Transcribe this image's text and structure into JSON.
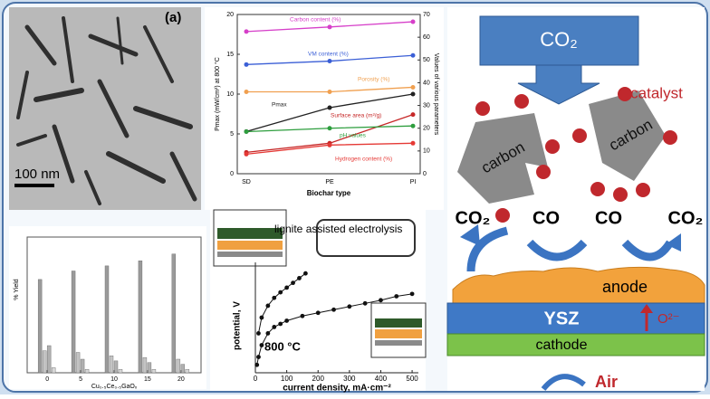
{
  "image": {
    "label": "(a)",
    "scale_bar": "100 nm"
  },
  "chart_data": [
    {
      "type": "line",
      "xlabel": "Biochar type",
      "ylabel": "Pmax (mW/cm²) at 800 °C",
      "y2label": "Values of various parameters",
      "categories": [
        "SD",
        "PE",
        "PI"
      ],
      "ylim": [
        0,
        20
      ],
      "yticks": [
        0,
        5,
        10,
        15,
        20
      ],
      "y2lim": [
        0,
        70
      ],
      "y2ticks": [
        0,
        10,
        20,
        30,
        40,
        50,
        60,
        70
      ],
      "series": [
        {
          "name": "Carbon content (%)",
          "color": "#d63fc9",
          "axis": "y2",
          "values": [
            62.5,
            64.5,
            66.8
          ]
        },
        {
          "name": "VM content (%)",
          "color": "#3b5fd6",
          "axis": "y2",
          "values": [
            48,
            49.5,
            52
          ]
        },
        {
          "name": "Porosity (%)",
          "color": "#f0a050",
          "axis": "y2",
          "values": [
            36,
            36,
            38
          ]
        },
        {
          "name": "Pmax",
          "color": "#222222",
          "values": [
            5.3,
            8.3,
            10
          ]
        },
        {
          "name": "Surface area (m²/g)",
          "color": "#c62828",
          "axis": "y2",
          "values": [
            9.4,
            13.4,
            26
          ]
        },
        {
          "name": "pH values",
          "color": "#2e9e3e",
          "axis": "y2",
          "values": [
            18.5,
            20,
            21
          ]
        },
        {
          "name": "Hydrogen content (%)",
          "color": "#e53935",
          "axis": "y2",
          "values": [
            8.6,
            12.6,
            13.4
          ]
        }
      ]
    },
    {
      "type": "bar",
      "xlabel": "Cu₀.₅Ce₀.₅GaOₓ",
      "ylabel": "% Yield",
      "x": [
        0,
        5,
        10,
        15,
        20
      ],
      "xlim": [
        -3,
        23
      ],
      "xticks": [
        0,
        5,
        10,
        15,
        20
      ],
      "ylim": [
        0,
        80
      ],
      "series": [
        {
          "color": "#9a9a9a",
          "values": [
            55,
            60,
            63,
            66,
            70
          ]
        },
        {
          "color": "#c4c4c4",
          "values": [
            13,
            12,
            10,
            9,
            8
          ]
        },
        {
          "color": "#b0b0b0",
          "values": [
            16,
            8,
            7,
            6,
            5
          ]
        },
        {
          "color": "#d8d8d8",
          "values": [
            3,
            2,
            2,
            2,
            2
          ]
        }
      ]
    },
    {
      "type": "scatter",
      "xlabel": "current density, mA·cm⁻²",
      "ylabel": "potential, V",
      "xlim": [
        0,
        520
      ],
      "xticks": [
        0,
        100,
        200,
        300,
        400,
        500
      ],
      "ylim": [
        0,
        1.4
      ],
      "annotations": [
        "800 °C",
        "lignite assisted electrolysis"
      ],
      "series": [
        {
          "color": "#111111",
          "x": [
            10,
            20,
            40,
            60,
            80,
            100,
            120,
            140,
            160
          ],
          "values": [
            0.5,
            0.7,
            0.85,
            0.95,
            1.02,
            1.08,
            1.14,
            1.2,
            1.26
          ]
        },
        {
          "color": "#111111",
          "x": [
            5,
            10,
            20,
            40,
            60,
            80,
            100,
            150,
            200,
            250,
            300,
            350,
            400,
            450,
            500
          ],
          "values": [
            0.1,
            0.2,
            0.35,
            0.5,
            0.58,
            0.62,
            0.66,
            0.72,
            0.76,
            0.8,
            0.84,
            0.88,
            0.92,
            0.97,
            1.0
          ]
        }
      ]
    }
  ],
  "diagram": {
    "inlet": "CO₂",
    "catalyst": "catalyst",
    "carbon_left": "carbon",
    "carbon_right": "carbon",
    "co2_left": "CO₂",
    "co_left": "CO",
    "co_right": "CO",
    "co2_right": "CO₂",
    "anode": "anode",
    "electrolyte": "YSZ",
    "ion": "O²⁻",
    "cathode": "cathode",
    "air": "Air"
  }
}
